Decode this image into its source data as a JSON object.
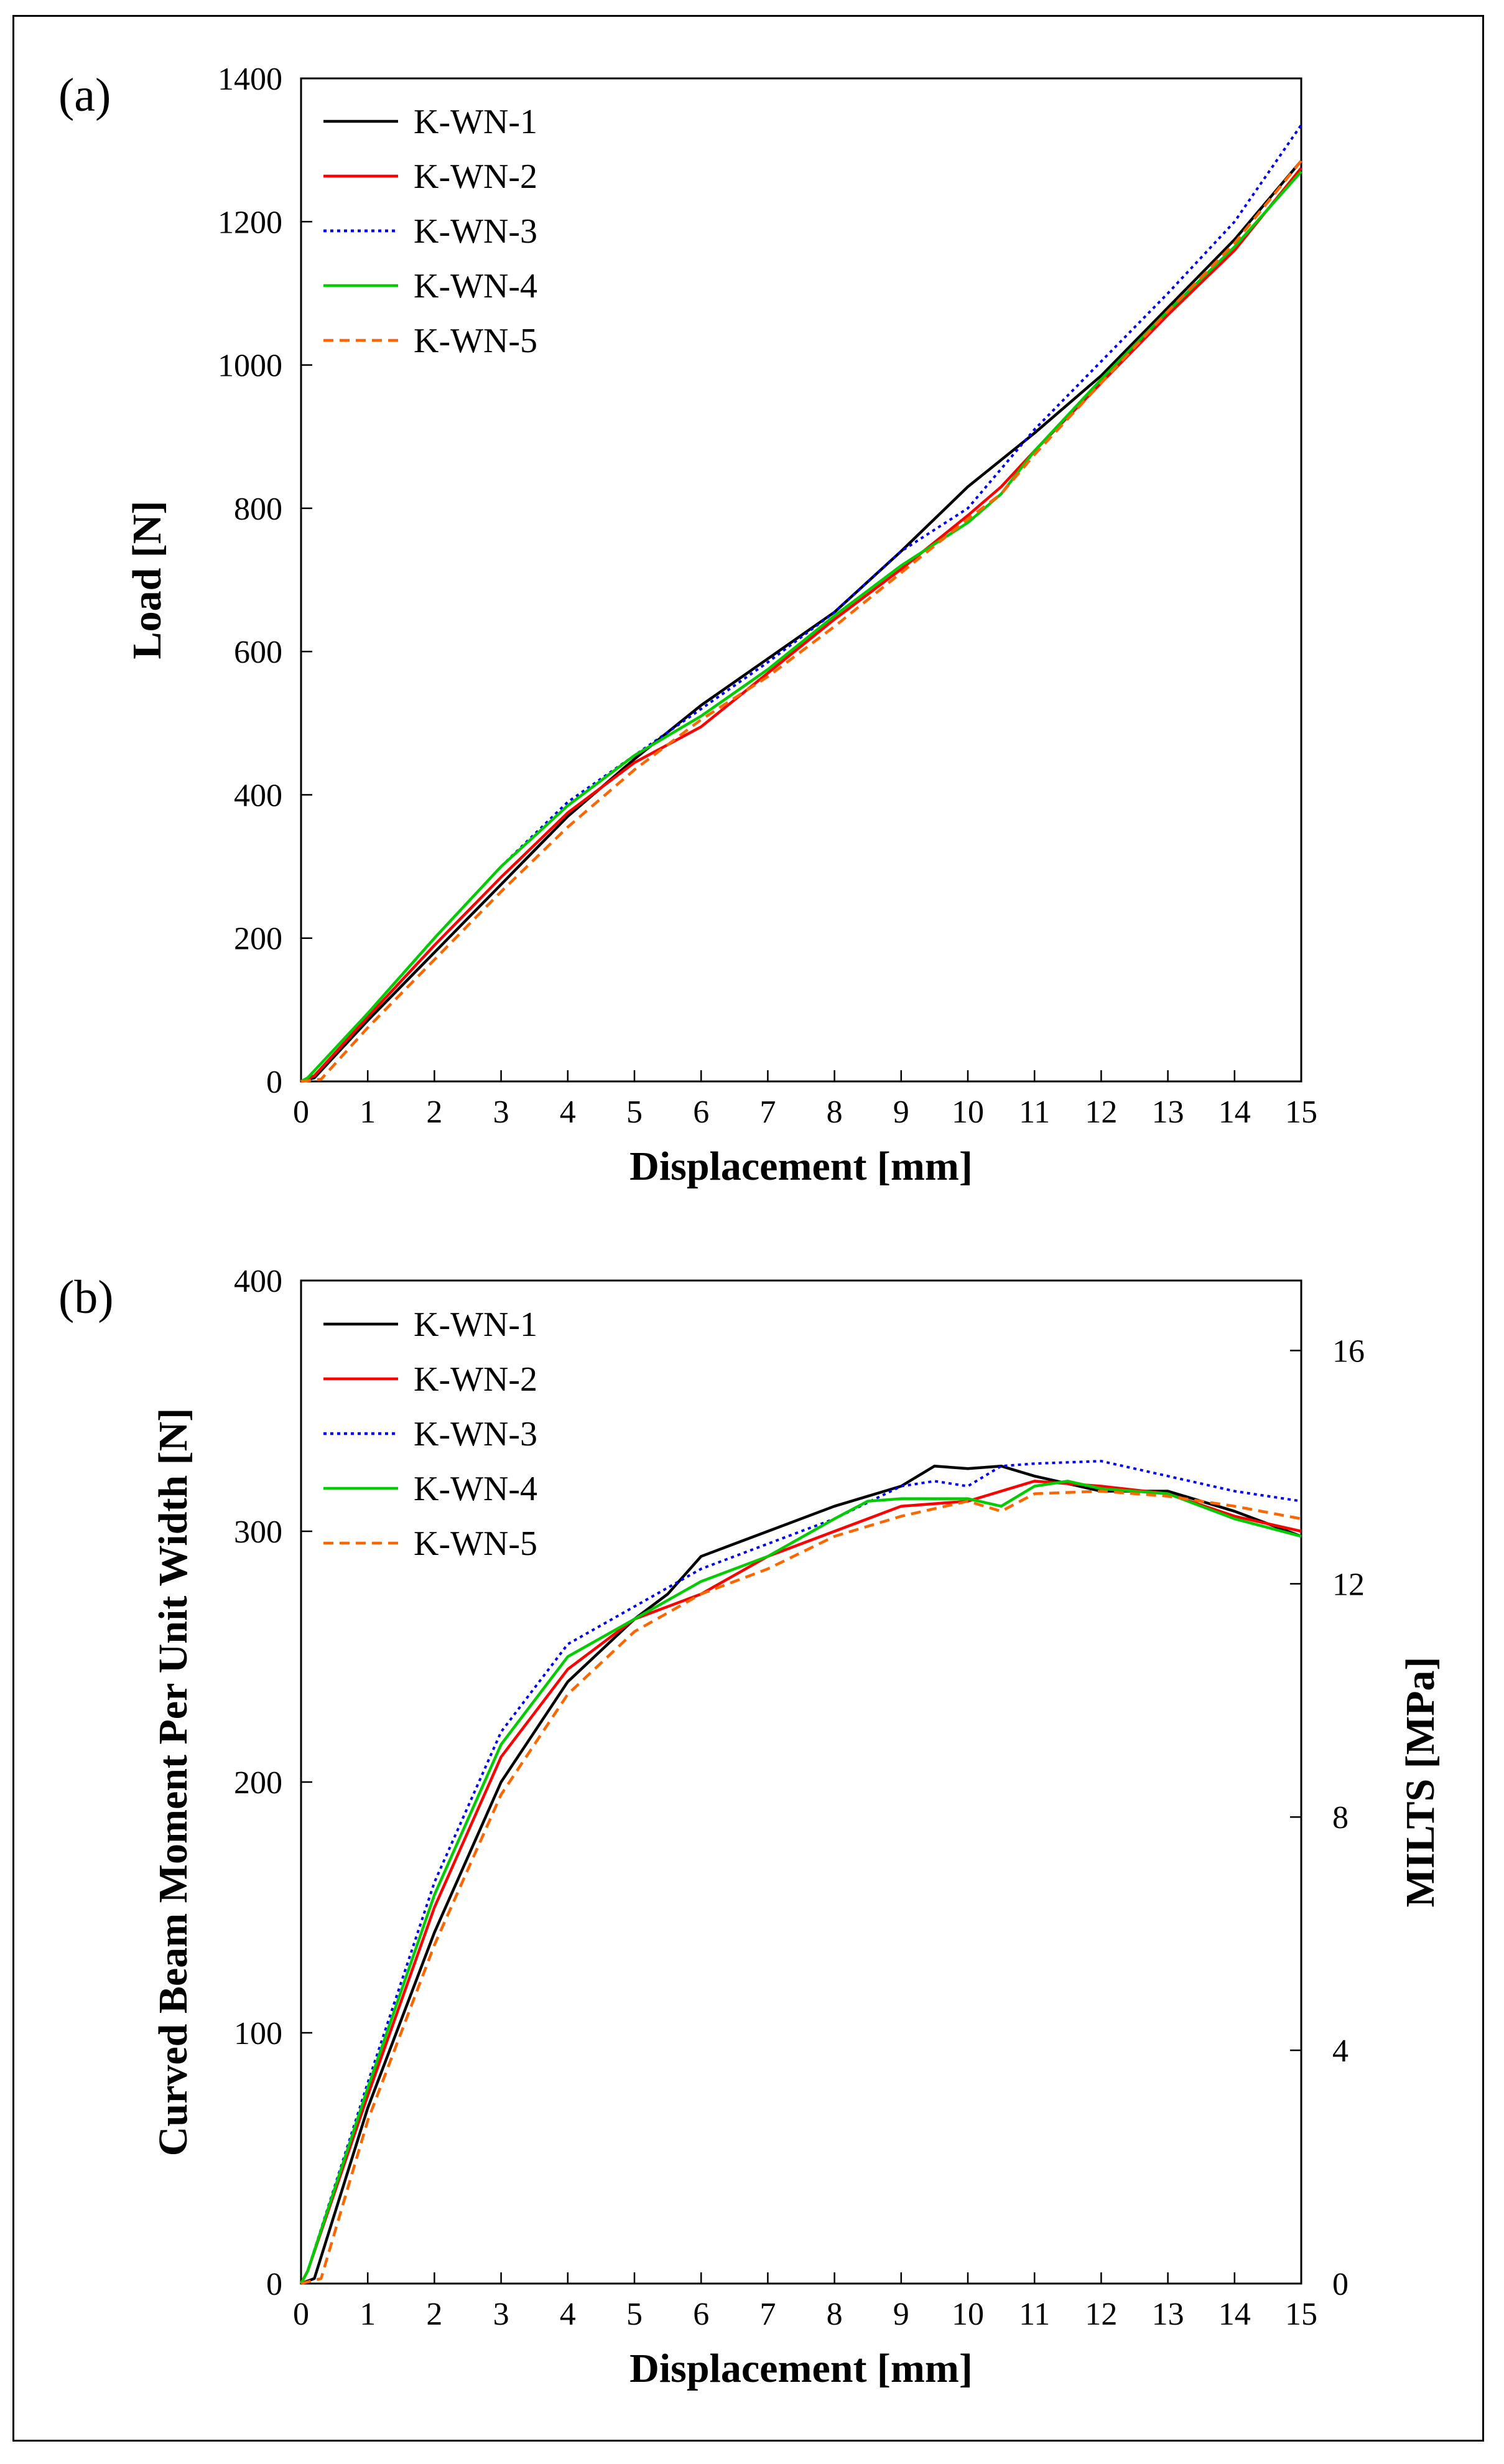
{
  "chart_data": [
    {
      "type": "line",
      "panel_label": "(a)",
      "xlabel": "Displacement [mm]",
      "ylabel": "Load [N]",
      "xlim": [
        0,
        15
      ],
      "ylim": [
        0,
        1400
      ],
      "xticks": [
        0,
        1,
        2,
        3,
        4,
        5,
        6,
        7,
        8,
        9,
        10,
        11,
        12,
        13,
        14,
        15
      ],
      "yticks": [
        0,
        200,
        400,
        600,
        800,
        1000,
        1200,
        1400
      ],
      "grid": false,
      "legend_position": "top-left",
      "series": [
        {
          "name": "K-WN-1",
          "color": "#000000",
          "dash": "solid",
          "x": [
            0,
            0.2,
            1,
            2,
            3,
            4,
            5,
            6,
            7,
            8,
            9,
            10,
            11,
            12,
            13,
            14,
            15
          ],
          "y": [
            0,
            5,
            85,
            180,
            275,
            370,
            450,
            525,
            590,
            655,
            740,
            830,
            905,
            985,
            1080,
            1175,
            1285
          ]
        },
        {
          "name": "K-WN-2",
          "color": "#ff0000",
          "dash": "solid",
          "x": [
            0,
            0.2,
            1,
            2,
            3,
            4,
            5,
            6,
            7,
            8,
            9,
            10,
            10.5,
            11,
            12,
            13,
            14,
            15
          ],
          "y": [
            0,
            8,
            90,
            190,
            285,
            375,
            445,
            495,
            570,
            645,
            715,
            790,
            830,
            880,
            975,
            1070,
            1160,
            1275
          ]
        },
        {
          "name": "K-WN-3",
          "color": "#0000ff",
          "dash": "dotted",
          "x": [
            0,
            0.1,
            1,
            2,
            3,
            4,
            5,
            6,
            7,
            8,
            9,
            10,
            11,
            12,
            13,
            14,
            15
          ],
          "y": [
            0,
            5,
            95,
            200,
            300,
            390,
            455,
            520,
            585,
            655,
            740,
            800,
            910,
            1005,
            1100,
            1200,
            1335
          ]
        },
        {
          "name": "K-WN-4",
          "color": "#00cc00",
          "dash": "solid",
          "x": [
            0,
            0.1,
            1,
            2,
            3,
            4,
            5,
            6,
            7,
            8,
            9,
            10,
            10.5,
            11,
            12,
            13,
            14,
            15
          ],
          "y": [
            0,
            5,
            95,
            200,
            300,
            385,
            455,
            510,
            575,
            650,
            720,
            780,
            820,
            880,
            980,
            1075,
            1165,
            1270
          ]
        },
        {
          "name": "K-WN-5",
          "color": "#ff6600",
          "dash": "dashed",
          "x": [
            0,
            0.3,
            1,
            2,
            3,
            4,
            5,
            6,
            7,
            8,
            9,
            10,
            10.5,
            11,
            12,
            13,
            14,
            15
          ],
          "y": [
            0,
            3,
            75,
            170,
            265,
            355,
            435,
            505,
            565,
            635,
            710,
            785,
            820,
            875,
            975,
            1075,
            1170,
            1285
          ]
        }
      ]
    },
    {
      "type": "line",
      "panel_label": "(b)",
      "xlabel": "Displacement [mm]",
      "ylabel": "Curved Beam Moment Per Unit Width [N]",
      "y2label": "MILTS [MPa]",
      "xlim": [
        0,
        15
      ],
      "ylim": [
        0,
        400
      ],
      "y2lim": [
        0,
        17.2
      ],
      "xticks": [
        0,
        1,
        2,
        3,
        4,
        5,
        6,
        7,
        8,
        9,
        10,
        11,
        12,
        13,
        14,
        15
      ],
      "yticks": [
        0,
        100,
        200,
        300,
        400
      ],
      "y2ticks": [
        0,
        4,
        8,
        12,
        16
      ],
      "grid": false,
      "legend_position": "top-left",
      "series": [
        {
          "name": "K-WN-1",
          "color": "#000000",
          "dash": "solid",
          "x": [
            0,
            0.2,
            1,
            2,
            3,
            4,
            5,
            5.5,
            6,
            6.5,
            7,
            8,
            9,
            9.5,
            10,
            10.5,
            11,
            12,
            13,
            14,
            15
          ],
          "y": [
            0,
            2,
            70,
            140,
            200,
            240,
            265,
            275,
            290,
            295,
            300,
            310,
            318,
            326,
            325,
            326,
            322,
            316,
            316,
            308,
            298
          ]
        },
        {
          "name": "K-WN-2",
          "color": "#ff0000",
          "dash": "solid",
          "x": [
            0,
            0.1,
            1,
            2,
            3,
            4,
            5,
            6,
            7,
            8,
            9,
            10,
            11,
            12,
            13,
            14,
            15
          ],
          "y": [
            0,
            5,
            75,
            150,
            210,
            245,
            265,
            275,
            290,
            300,
            310,
            312,
            320,
            318,
            315,
            306,
            300
          ]
        },
        {
          "name": "K-WN-3",
          "color": "#0000ff",
          "dash": "dotted",
          "x": [
            0,
            0.1,
            1,
            2,
            3,
            4,
            5,
            6,
            7,
            8,
            9,
            9.5,
            10,
            10.5,
            11,
            12,
            13,
            14,
            15
          ],
          "y": [
            0,
            5,
            80,
            160,
            220,
            255,
            270,
            285,
            295,
            305,
            318,
            320,
            318,
            326,
            327,
            328,
            322,
            316,
            312
          ]
        },
        {
          "name": "K-WN-4",
          "color": "#00cc00",
          "dash": "solid",
          "x": [
            0,
            0.1,
            1,
            2,
            3,
            4,
            5,
            6,
            7,
            8,
            8.5,
            9,
            10,
            10.5,
            11,
            11.5,
            12,
            13,
            14,
            15
          ],
          "y": [
            0,
            5,
            78,
            155,
            215,
            250,
            265,
            280,
            290,
            305,
            312,
            313,
            313,
            310,
            318,
            320,
            317,
            315,
            305,
            298
          ]
        },
        {
          "name": "K-WN-5",
          "color": "#ff6600",
          "dash": "dashed",
          "x": [
            0,
            0.3,
            1,
            2,
            3,
            4,
            5,
            6,
            7,
            8,
            9,
            10,
            10.5,
            11,
            12,
            13,
            14,
            15
          ],
          "y": [
            0,
            2,
            65,
            135,
            195,
            235,
            260,
            275,
            285,
            298,
            306,
            312,
            308,
            315,
            316,
            314,
            310,
            305
          ]
        }
      ]
    }
  ]
}
